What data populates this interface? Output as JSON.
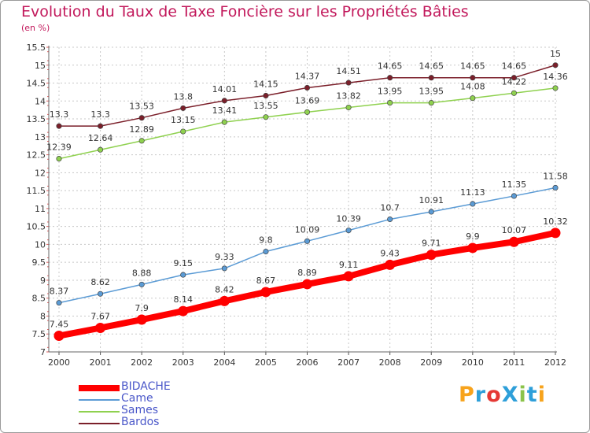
{
  "header": {
    "title": "Evolution du Taux de Taxe Foncière sur les Propriétés Bâties",
    "unit": "(en %)"
  },
  "chart_data": {
    "type": "line",
    "title": "Evolution du Taux de Taxe Foncière sur les Propriétés Bâties",
    "ylabel": "(en %)",
    "xlabel": "",
    "ylim": [
      7,
      15.5
    ],
    "y_ticks": [
      "7",
      "7.5",
      "8",
      "8.5",
      "9",
      "9.5",
      "10",
      "10.5",
      "11",
      "11.5",
      "12",
      "12.5",
      "13",
      "13.5",
      "14",
      "14.5",
      "15",
      "15.5"
    ],
    "categories": [
      "2000",
      "2001",
      "2002",
      "2003",
      "2004",
      "2005",
      "2006",
      "2007",
      "2008",
      "2009",
      "2010",
      "2011",
      "2012"
    ],
    "series": [
      {
        "name": "BIDACHE",
        "color": "#ff0000",
        "values": [
          7.45,
          7.67,
          7.9,
          8.14,
          8.42,
          8.67,
          8.89,
          9.11,
          9.43,
          9.71,
          9.9,
          10.07,
          10.32
        ],
        "labels": [
          "7.45",
          "7.67",
          "7.9",
          "8.14",
          "8.42",
          "8.67",
          "8.89",
          "9.11",
          "9.43",
          "9.71",
          "9.9",
          "10.07",
          "10.32"
        ]
      },
      {
        "name": "Came",
        "color": "#5b9bd5",
        "values": [
          8.37,
          8.62,
          8.88,
          9.15,
          9.33,
          9.8,
          10.09,
          10.39,
          10.7,
          10.91,
          11.13,
          11.35,
          11.58
        ],
        "labels": [
          "8.37",
          "8.62",
          "8.88",
          "9.15",
          "9.33",
          "9.8",
          "10.09",
          "10.39",
          "10.7",
          "10.91",
          "11.13",
          "11.35",
          "11.58"
        ]
      },
      {
        "name": "Sames",
        "color": "#8fd14f",
        "values": [
          12.39,
          12.64,
          12.89,
          13.15,
          13.41,
          13.55,
          13.69,
          13.82,
          13.95,
          13.95,
          14.08,
          14.22,
          14.36
        ],
        "labels": [
          "12.39",
          "12.64",
          "12.89",
          "13.15",
          "13.41",
          "13.55",
          "13.69",
          "13.82",
          "13.95",
          "13.95",
          "14.08",
          "14.22",
          "14.36"
        ]
      },
      {
        "name": "Bardos",
        "color": "#7b1f2a",
        "values": [
          13.3,
          13.3,
          13.53,
          13.8,
          14.01,
          14.15,
          14.37,
          14.51,
          14.65,
          14.65,
          14.65,
          14.65,
          15
        ],
        "labels": [
          "13.3",
          "13.3",
          "13.53",
          "13.8",
          "14.01",
          "14.15",
          "14.37",
          "14.51",
          "14.65",
          "14.65",
          "14.65",
          "14.65",
          "15"
        ]
      }
    ]
  },
  "logo": {
    "text": "ProXiti",
    "colors": [
      "#f7a31c",
      "#2e9fd9",
      "#e53935",
      "#2e9fd9",
      "#8bc34a",
      "#2e9fd9",
      "#f7a31c"
    ]
  }
}
